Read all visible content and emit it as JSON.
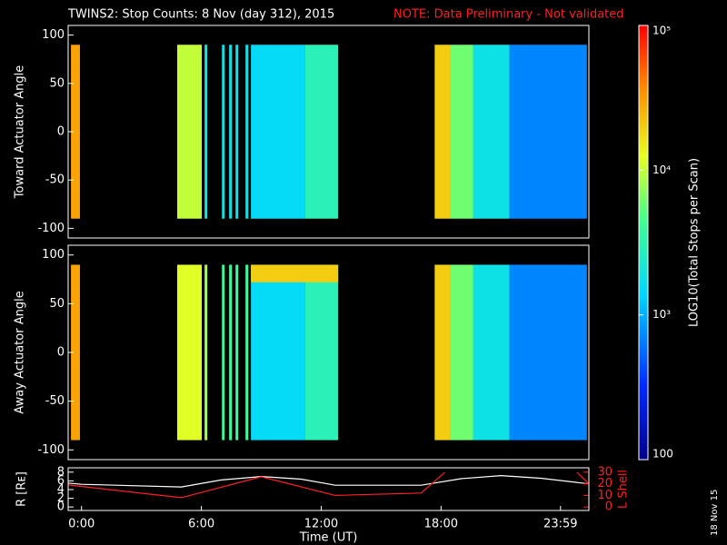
{
  "title": "TWINS2: Stop Counts:  8 Nov (day 312), 2015",
  "note": "NOTE: Data Preliminary - Not validated",
  "stamp": "18 Nov 15",
  "chart_data": [
    {
      "type": "heatmap",
      "ylabel": "Toward Actuator Angle",
      "xlim": [
        -0.67,
        25.4
      ],
      "ylim": [
        -110,
        110
      ],
      "yticks": [
        -100,
        -50,
        0,
        50,
        100
      ],
      "segments": [
        {
          "start": -0.53,
          "end": -0.08,
          "value": 30000
        },
        {
          "start": 4.79,
          "end": 6.02,
          "value": 10000
        },
        {
          "start": 6.16,
          "end": 6.3,
          "value": 2000
        },
        {
          "start": 7.03,
          "end": 7.16,
          "value": 1800
        },
        {
          "start": 7.39,
          "end": 7.53,
          "value": 1800
        },
        {
          "start": 7.71,
          "end": 7.85,
          "value": 1800
        },
        {
          "start": 8.21,
          "end": 8.35,
          "value": 1800
        },
        {
          "start": 8.48,
          "end": 11.17,
          "value": 1500
        },
        {
          "start": 11.17,
          "end": 12.85,
          "value": 3000
        },
        {
          "start": 17.68,
          "end": 18.46,
          "value": 20000
        },
        {
          "start": 18.46,
          "end": 19.6,
          "value": 6000
        },
        {
          "start": 19.6,
          "end": 21.42,
          "value": 1800
        },
        {
          "start": 21.42,
          "end": 25.3,
          "value": 700
        }
      ]
    },
    {
      "type": "heatmap",
      "ylabel": "Away Actuator Angle",
      "xlim": [
        -0.67,
        25.4
      ],
      "ylim": [
        -110,
        110
      ],
      "yticks": [
        -100,
        -50,
        0,
        50,
        100
      ],
      "segments": [
        {
          "start": -0.53,
          "end": -0.08,
          "value": 30000
        },
        {
          "start": 4.79,
          "end": 6.02,
          "value": 12000
        },
        {
          "start": 6.16,
          "end": 6.3,
          "value": 8000
        },
        {
          "start": 7.03,
          "end": 7.16,
          "value": 4000
        },
        {
          "start": 7.39,
          "end": 7.53,
          "value": 4000
        },
        {
          "start": 7.71,
          "end": 7.85,
          "value": 4000
        },
        {
          "start": 8.21,
          "end": 8.35,
          "value": 4000
        },
        {
          "start": 8.48,
          "end": 11.17,
          "value": 1500
        },
        {
          "start": 11.17,
          "end": 12.85,
          "value": 3000
        },
        {
          "start": 8.48,
          "end": 12.85,
          "value": 20000,
          "angles": [
            72,
            90
          ]
        },
        {
          "start": 17.68,
          "end": 18.46,
          "value": 20000
        },
        {
          "start": 18.46,
          "end": 19.6,
          "value": 6000
        },
        {
          "start": 19.6,
          "end": 21.42,
          "value": 1800
        },
        {
          "start": 21.42,
          "end": 25.3,
          "value": 700
        }
      ]
    },
    {
      "type": "line",
      "xlabel": "Time (UT)",
      "ylabel": "R [Rᴇ]",
      "y2label": "L Shell",
      "xlim": [
        -0.67,
        25.4
      ],
      "ylim": [
        -0.8,
        9
      ],
      "yticks": [
        0,
        2,
        4,
        6,
        8
      ],
      "y2lim": [
        -3,
        33.75
      ],
      "y2ticks": [
        0,
        10,
        20,
        30
      ],
      "xticks": [
        {
          "value": 0,
          "label": "0:00"
        },
        {
          "value": 6,
          "label": "6:00"
        },
        {
          "value": 12,
          "label": "12:00"
        },
        {
          "value": 18,
          "label": "18:00"
        },
        {
          "value": 23.98,
          "label": "23:59"
        }
      ],
      "series": [
        {
          "name": "R",
          "color": "#ffffff",
          "x": [
            -0.67,
            0,
            5,
            7,
            9,
            11,
            12.7,
            17,
            19,
            21,
            23,
            25.4
          ],
          "values": [
            5.5,
            5.2,
            4.6,
            6.2,
            7.0,
            6.4,
            5.0,
            5.0,
            6.5,
            7.2,
            6.6,
            5.3
          ]
        },
        {
          "name": "L Shell",
          "color": "#ff2020",
          "axis": "y2",
          "x": [
            -0.67,
            5,
            9,
            12.7,
            17,
            18.2,
            null,
            24.8,
            25.4
          ],
          "values": [
            19,
            8,
            26,
            10,
            12,
            30,
            null,
            30,
            20
          ]
        }
      ]
    },
    {
      "type": "colorbar",
      "label": "LOG10(Total Stops per Scan)",
      "log": true,
      "lim": [
        100,
        100000
      ],
      "ticks": [
        {
          "value": 100000,
          "label": "10⁵"
        },
        {
          "value": 10000,
          "label": "10⁴"
        },
        {
          "value": 1000,
          "label": "10³"
        },
        100
      ]
    }
  ]
}
